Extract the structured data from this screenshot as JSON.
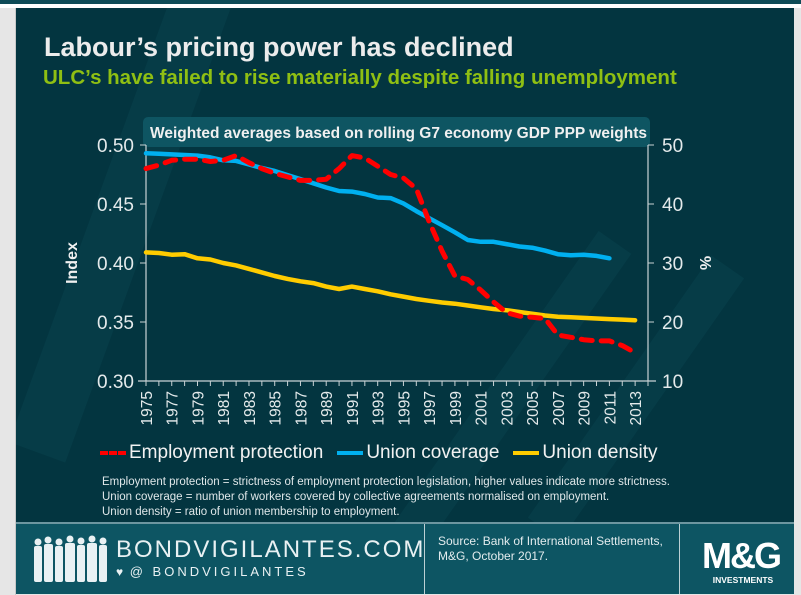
{
  "header": {
    "title": "Labour’s pricing power has declined",
    "subtitle": "ULC’s have failed to rise materially despite falling unemployment"
  },
  "chart_data": {
    "type": "line",
    "annotation": "Weighted averages based on rolling G7 economy GDP PPP weights",
    "x": [
      1975,
      1976,
      1977,
      1978,
      1979,
      1980,
      1981,
      1982,
      1983,
      1984,
      1985,
      1986,
      1987,
      1988,
      1989,
      1990,
      1991,
      1992,
      1993,
      1994,
      1995,
      1996,
      1997,
      1998,
      1999,
      2000,
      2001,
      2002,
      2003,
      2004,
      2005,
      2006,
      2007,
      2008,
      2009,
      2010,
      2011,
      2012,
      2013
    ],
    "x_tick_labels": [
      "1975",
      "1977",
      "1979",
      "1981",
      "1983",
      "1985",
      "1987",
      "1989",
      "1991",
      "1993",
      "1995",
      "1997",
      "1999",
      "2001",
      "2003",
      "2005",
      "2007",
      "2009",
      "2011",
      "2013"
    ],
    "xlim": [
      1975,
      2014
    ],
    "ylabel_left": "Index",
    "ylim_left": [
      0.3,
      0.5
    ],
    "yticks_left": [
      "0.30",
      "0.35",
      "0.40",
      "0.45",
      "0.50"
    ],
    "ylabel_right": "%",
    "ylim_right": [
      10,
      50
    ],
    "yticks_right": [
      "10",
      "20",
      "30",
      "40",
      "50"
    ],
    "grid": false,
    "legend_position": "bottom",
    "series": [
      {
        "name": "Employment protection",
        "axis": "left",
        "style": "dashed",
        "color": "#ff0000",
        "values": [
          0.48,
          0.483,
          0.487,
          0.488,
          0.488,
          0.486,
          0.487,
          0.491,
          0.485,
          0.48,
          0.476,
          0.473,
          0.47,
          0.47,
          0.471,
          0.48,
          0.491,
          0.489,
          0.482,
          0.475,
          0.472,
          0.463,
          0.435,
          0.41,
          0.389,
          0.386,
          0.377,
          0.367,
          0.358,
          0.355,
          0.354,
          0.353,
          0.339,
          0.337,
          0.335,
          0.334,
          0.334,
          0.33,
          0.324
        ]
      },
      {
        "name": "Union coverage",
        "axis": "right",
        "style": "solid",
        "color": "#00b0f0",
        "values": [
          48.6,
          48.5,
          48.4,
          48.3,
          48.2,
          47.9,
          47.4,
          47.3,
          46.7,
          46.1,
          45.6,
          44.9,
          44.2,
          43.5,
          42.8,
          42.2,
          42.1,
          41.7,
          41.1,
          41.0,
          40.1,
          38.8,
          37.6,
          36.4,
          35.2,
          33.9,
          33.6,
          33.6,
          33.2,
          32.8,
          32.6,
          32.1,
          31.5,
          31.3,
          31.4,
          31.2,
          30.8
        ]
      },
      {
        "name": "Union density",
        "axis": "right",
        "style": "solid",
        "color": "#ffcc00",
        "values": [
          31.8,
          31.7,
          31.4,
          31.5,
          30.8,
          30.6,
          30.0,
          29.6,
          29.0,
          28.4,
          27.8,
          27.3,
          26.9,
          26.6,
          26.0,
          25.6,
          26.0,
          25.6,
          25.2,
          24.7,
          24.3,
          23.9,
          23.6,
          23.3,
          23.1,
          22.8,
          22.5,
          22.2,
          22.0,
          21.7,
          21.4,
          21.1,
          20.9,
          20.8,
          20.7,
          20.6,
          20.5,
          20.4,
          20.3
        ]
      }
    ]
  },
  "legend": [
    {
      "label": "Employment protection"
    },
    {
      "label": "Union coverage"
    },
    {
      "label": "Union density"
    }
  ],
  "notes": [
    "Employment protection = strictness of employment protection legislation, higher values indicate more strictness.",
    "Union coverage = number of workers covered by collective agreements normalised on employment.",
    "Union density = ratio of union membership to employment."
  ],
  "footer": {
    "brand": "BONDVIGILANTES.COM",
    "handle": "@ BONDVIGILANTES",
    "source": "Source: Bank of International Settlements, M&G, October 2017.",
    "logo_text": "M&G",
    "logo_subtext": "INVESTMENTS"
  },
  "colors": {
    "background": "#033540",
    "title": "#ececec",
    "subtitle": "#8fbf13",
    "footer": "#0d5563"
  }
}
